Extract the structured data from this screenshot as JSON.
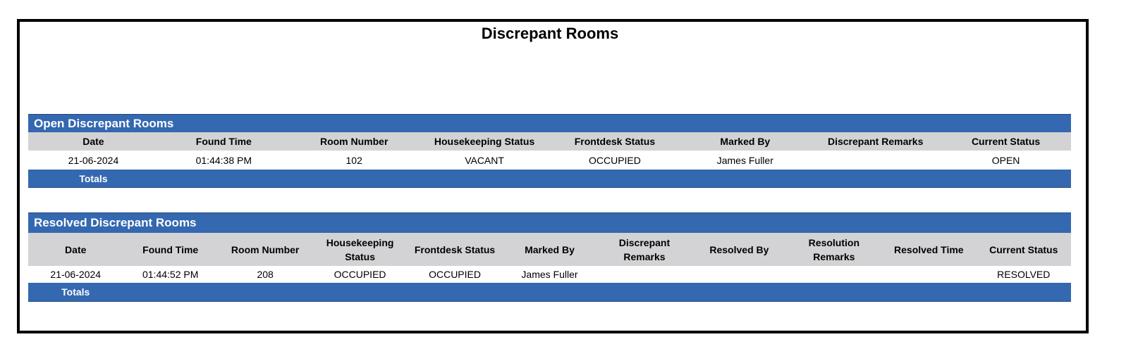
{
  "title": "Discrepant Rooms",
  "open": {
    "heading": "Open Discrepant Rooms",
    "columns": [
      "Date",
      "Found Time",
      "Room Number",
      "Housekeeping Status",
      "Frontdesk Status",
      "Marked By",
      "Discrepant Remarks",
      "Current Status"
    ],
    "rows": [
      [
        "21-06-2024",
        "01:44:38 PM",
        "102",
        "VACANT",
        "OCCUPIED",
        "James Fuller",
        "",
        "OPEN"
      ]
    ],
    "totals_label": "Totals"
  },
  "resolved": {
    "heading": "Resolved Discrepant Rooms",
    "columns": [
      "Date",
      "Found Time",
      "Room Number",
      "Housekeeping Status",
      "Frontdesk Status",
      "Marked By",
      "Discrepant Remarks",
      "Resolved By",
      "Resolution Remarks",
      "Resolved Time",
      "Current Status"
    ],
    "rows": [
      [
        "21-06-2024",
        "01:44:52 PM",
        "208",
        "OCCUPIED",
        "OCCUPIED",
        "James Fuller",
        "",
        "",
        "",
        "",
        "RESOLVED"
      ]
    ],
    "totals_label": "Totals"
  },
  "colors": {
    "section_header": "#3468b0",
    "column_header": "#d3d3d5"
  }
}
